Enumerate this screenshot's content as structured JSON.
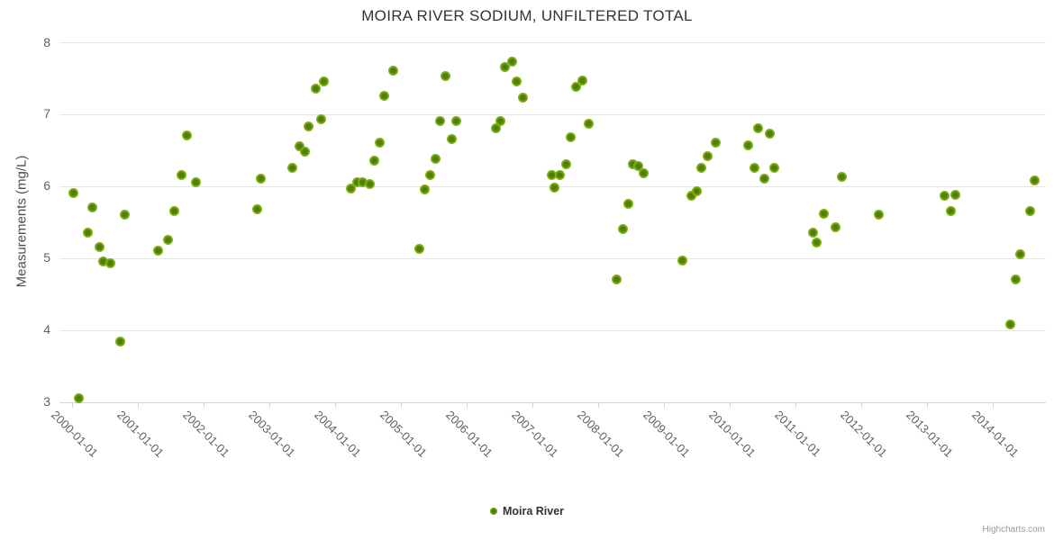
{
  "credits": {
    "label": "Highcharts.com"
  },
  "colors": {
    "background": "#ffffff",
    "grid": "#e6e6e6",
    "axis_line": "#ccd6eb",
    "tick": "#ccd6eb",
    "axis_labels": "#606060",
    "title_text": "#333333",
    "legend_text": "#333333",
    "credits_text": "#999999",
    "marker_outer": "#7db40e",
    "marker_center": "#517c07"
  },
  "chart_data": {
    "type": "scatter",
    "title": "MOIRA RIVER SODIUM, UNFILTERED TOTAL",
    "xlabel": "",
    "ylabel": "Measurements (mg/L)",
    "ylim": [
      3,
      8
    ],
    "y_ticks": [
      8,
      7,
      6,
      5,
      4,
      3
    ],
    "x_ticks": [
      "2000-01-01",
      "2001-01-01",
      "2002-01-01",
      "2003-01-01",
      "2004-01-01",
      "2005-01-01",
      "2006-01-01",
      "2007-01-01",
      "2008-01-01",
      "2009-01-01",
      "2010-01-01",
      "2011-01-01",
      "2012-01-01",
      "2013-01-01",
      "2014-01-01"
    ],
    "x_tick_rotation": 45,
    "grid": "horizontal",
    "legend_position": "bottom-center",
    "series": [
      {
        "name": "Moira River",
        "points": [
          [
            "2000-01-10",
            5.9
          ],
          [
            "2000-02-08",
            3.05
          ],
          [
            "2000-03-30",
            5.35
          ],
          [
            "2000-04-22",
            5.7
          ],
          [
            "2000-06-01",
            5.15
          ],
          [
            "2000-06-24",
            4.95
          ],
          [
            "2000-08-01",
            4.93
          ],
          [
            "2000-09-24",
            3.84
          ],
          [
            "2000-10-22",
            5.6
          ],
          [
            "2001-04-25",
            5.1
          ],
          [
            "2001-06-17",
            5.25
          ],
          [
            "2001-07-20",
            5.65
          ],
          [
            "2001-08-29",
            6.15
          ],
          [
            "2001-10-01",
            6.7
          ],
          [
            "2001-11-21",
            6.05
          ],
          [
            "2002-10-25",
            5.68
          ],
          [
            "2002-11-16",
            6.1
          ],
          [
            "2003-05-08",
            6.25
          ],
          [
            "2003-06-16",
            6.55
          ],
          [
            "2003-07-16",
            6.48
          ],
          [
            "2003-08-06",
            6.83
          ],
          [
            "2003-09-13",
            7.35
          ],
          [
            "2003-10-15",
            6.93
          ],
          [
            "2003-11-01",
            7.45
          ],
          [
            "2004-03-29",
            5.97
          ],
          [
            "2004-05-03",
            6.05
          ],
          [
            "2004-06-02",
            6.05
          ],
          [
            "2004-07-09",
            6.03
          ],
          [
            "2004-08-05",
            6.35
          ],
          [
            "2004-09-05",
            6.6
          ],
          [
            "2004-10-02",
            7.25
          ],
          [
            "2004-11-20",
            7.6
          ],
          [
            "2005-04-12",
            5.13
          ],
          [
            "2005-05-14",
            5.95
          ],
          [
            "2005-06-13",
            6.15
          ],
          [
            "2005-07-12",
            6.38
          ],
          [
            "2005-08-06",
            6.9
          ],
          [
            "2005-09-06",
            7.53
          ],
          [
            "2005-10-08",
            6.65
          ],
          [
            "2005-11-06",
            6.9
          ],
          [
            "2006-06-14",
            6.8
          ],
          [
            "2006-07-04",
            6.9
          ],
          [
            "2006-08-03",
            7.65
          ],
          [
            "2006-09-08",
            7.73
          ],
          [
            "2006-10-03",
            7.45
          ],
          [
            "2006-11-10",
            7.23
          ],
          [
            "2007-04-16",
            6.15
          ],
          [
            "2007-05-04",
            5.98
          ],
          [
            "2007-06-03",
            6.15
          ],
          [
            "2007-07-08",
            6.3
          ],
          [
            "2007-08-01",
            6.68
          ],
          [
            "2007-08-29",
            7.38
          ],
          [
            "2007-10-05",
            7.47
          ],
          [
            "2007-11-12",
            6.87
          ],
          [
            "2008-04-15",
            4.7
          ],
          [
            "2008-05-18",
            5.4
          ],
          [
            "2008-06-16",
            5.75
          ],
          [
            "2008-07-10",
            6.3
          ],
          [
            "2008-08-13",
            6.28
          ],
          [
            "2008-09-12",
            6.18
          ],
          [
            "2009-04-10",
            4.97
          ],
          [
            "2009-06-01",
            5.87
          ],
          [
            "2009-07-01",
            5.93
          ],
          [
            "2009-07-29",
            6.25
          ],
          [
            "2009-09-02",
            6.42
          ],
          [
            "2009-10-16",
            6.6
          ],
          [
            "2010-04-13",
            6.57
          ],
          [
            "2010-05-15",
            6.25
          ],
          [
            "2010-06-07",
            6.8
          ],
          [
            "2010-07-09",
            6.1
          ],
          [
            "2010-08-10",
            6.73
          ],
          [
            "2010-09-06",
            6.25
          ],
          [
            "2011-04-05",
            5.35
          ],
          [
            "2011-04-28",
            5.22
          ],
          [
            "2011-06-06",
            5.62
          ],
          [
            "2011-08-11",
            5.43
          ],
          [
            "2011-09-16",
            6.13
          ],
          [
            "2012-04-09",
            5.6
          ],
          [
            "2013-04-09",
            5.87
          ],
          [
            "2013-05-12",
            5.65
          ],
          [
            "2013-06-07",
            5.88
          ],
          [
            "2014-04-09",
            4.08
          ],
          [
            "2014-05-08",
            4.7
          ],
          [
            "2014-06-03",
            5.05
          ],
          [
            "2014-07-24",
            5.65
          ],
          [
            "2014-08-22",
            6.08
          ]
        ]
      }
    ]
  }
}
